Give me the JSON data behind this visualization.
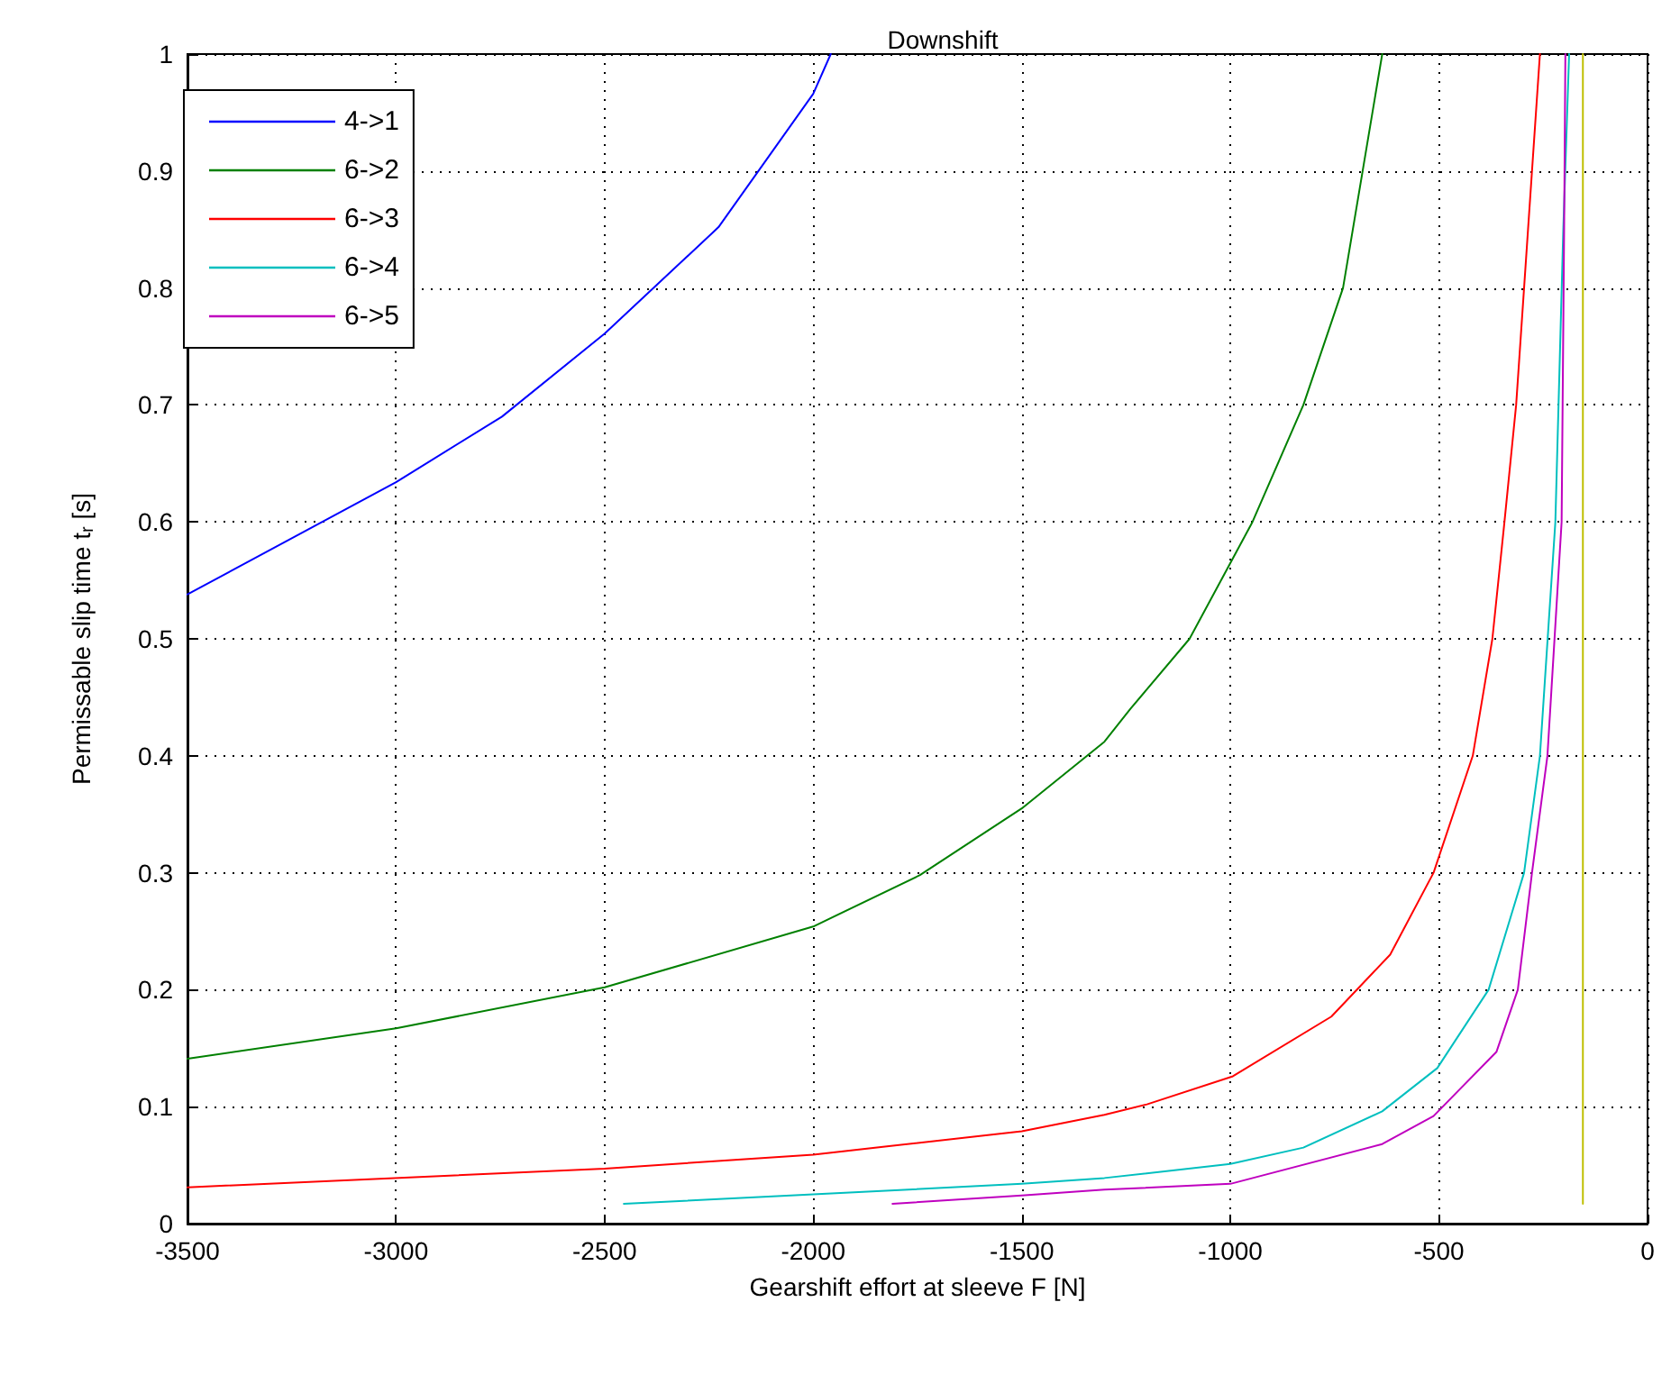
{
  "chart_data": {
    "type": "line",
    "title": "Downshift",
    "xlabel": "Gearshift effort at sleeve F [N]",
    "ylabel": "Permissable slip time t$_{r}$ [s]",
    "xlim": [
      -3500,
      0
    ],
    "xticks": [
      -3500,
      -3000,
      -2500,
      -2000,
      -1500,
      -1000,
      -500,
      0
    ],
    "ylim": [
      0,
      1
    ],
    "yticks": [
      0,
      0.1,
      0.2,
      0.3,
      0.4,
      0.5,
      0.6,
      0.7,
      0.8,
      0.9,
      1
    ],
    "grid": true,
    "legend": "top left",
    "marker": "none",
    "line_style": "solid",
    "series": [
      {
        "name": "4->1",
        "color": "#0000ff",
        "x": [
          -3500,
          -3000,
          -2746,
          -2500,
          -2227,
          -2000,
          -1958
        ],
        "values": [
          0.538,
          0.634,
          0.69,
          0.761,
          0.852,
          0.966,
          1
        ]
      },
      {
        "name": "6->2",
        "color": "#008000",
        "x": [
          -3500,
          -3000,
          -2500,
          -2000,
          -1744,
          -1500,
          -1302,
          -1240,
          -1098,
          -947,
          -825,
          -730,
          -683,
          -636
        ],
        "values": [
          0.141,
          0.167,
          0.202,
          0.254,
          0.298,
          0.355,
          0.412,
          0.44,
          0.5,
          0.6,
          0.7,
          0.8,
          0.9,
          1
        ]
      },
      {
        "name": "6->3",
        "color": "#ff0000",
        "x": [
          -3500,
          -2500,
          -2000,
          -1500,
          -1302,
          -1200,
          -994,
          -758,
          -617,
          -513,
          -419,
          -372,
          -343,
          -315,
          -296,
          -277,
          -258
        ],
        "values": [
          0.031,
          0.047,
          0.059,
          0.079,
          0.093,
          0.102,
          0.126,
          0.177,
          0.23,
          0.3,
          0.4,
          0.5,
          0.6,
          0.7,
          0.8,
          0.9,
          1
        ]
      },
      {
        "name": "6->4",
        "color": "#00bfbf",
        "x": [
          -2454,
          -2000,
          -1500,
          -1302,
          -1000,
          -825,
          -636,
          -504,
          -381,
          -296,
          -258,
          -221,
          -202,
          -188
        ],
        "values": [
          0.017,
          0.025,
          0.034,
          0.039,
          0.051,
          0.065,
          0.096,
          0.133,
          0.2,
          0.3,
          0.4,
          0.6,
          0.85,
          1
        ]
      },
      {
        "name": "6->5",
        "color": "#bf00bf",
        "x": [
          -1810,
          -1500,
          -1302,
          -1000,
          -636,
          -513,
          -362,
          -311,
          -277,
          -240,
          -206,
          -200,
          -197
        ],
        "values": [
          0.017,
          0.024,
          0.029,
          0.034,
          0.068,
          0.092,
          0.147,
          0.2,
          0.3,
          0.4,
          0.6,
          0.85,
          1
        ]
      },
      {
        "color": "#bfbf00",
        "x": [
          -155,
          -155
        ],
        "values": [
          0.017,
          1
        ]
      }
    ]
  }
}
